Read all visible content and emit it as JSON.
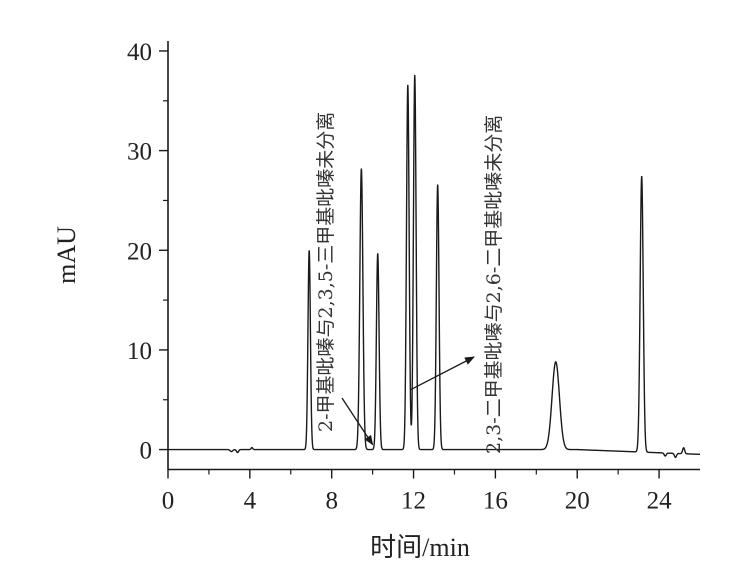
{
  "chart_data": {
    "type": "line",
    "title": "",
    "xlabel": "时间/min",
    "ylabel": "mAU",
    "xlim": [
      0,
      26
    ],
    "ylim": [
      -2,
      41
    ],
    "x_ticks": [
      0,
      4,
      8,
      12,
      16,
      20,
      24
    ],
    "y_ticks": [
      0,
      10,
      20,
      30,
      40
    ],
    "grid": false,
    "baseline": 0,
    "peaks": [
      {
        "rt": 3.1,
        "height": -0.2,
        "width": 0.06
      },
      {
        "rt": 3.4,
        "height": -0.3,
        "width": 0.05
      },
      {
        "rt": 4.1,
        "height": 0.2,
        "width": 0.04
      },
      {
        "rt": 6.9,
        "height": 20.0,
        "width": 0.06
      },
      {
        "rt": 9.45,
        "height": 28.2,
        "width": 0.075
      },
      {
        "rt": 10.25,
        "height": 19.7,
        "width": 0.065
      },
      {
        "rt": 11.72,
        "height": 36.6,
        "width": 0.065
      },
      {
        "rt": 12.06,
        "height": 37.6,
        "width": 0.065
      },
      {
        "rt": 13.18,
        "height": 26.6,
        "width": 0.065
      },
      {
        "rt": 18.95,
        "height": 8.8,
        "width": 0.18
      },
      {
        "rt": 23.15,
        "height": 27.7,
        "width": 0.075
      },
      {
        "rt": 24.3,
        "height": -0.3,
        "width": 0.05
      },
      {
        "rt": 24.8,
        "height": -0.4,
        "width": 0.05
      },
      {
        "rt": 25.2,
        "height": 0.6,
        "width": 0.05
      }
    ],
    "annotations": [
      {
        "text": "2-甲基吡嗪与2,3,5-三甲基吡嗪未分离",
        "x": 10.0,
        "y": 0.5
      },
      {
        "text": "2,3-二甲基吡嗪与2,6-二甲基吡嗪未分离",
        "x": 11.85,
        "y": 6.0
      }
    ]
  },
  "colors": {
    "line": "#1a1a1a",
    "axis": "#1a1a1a",
    "text": "#222222"
  }
}
